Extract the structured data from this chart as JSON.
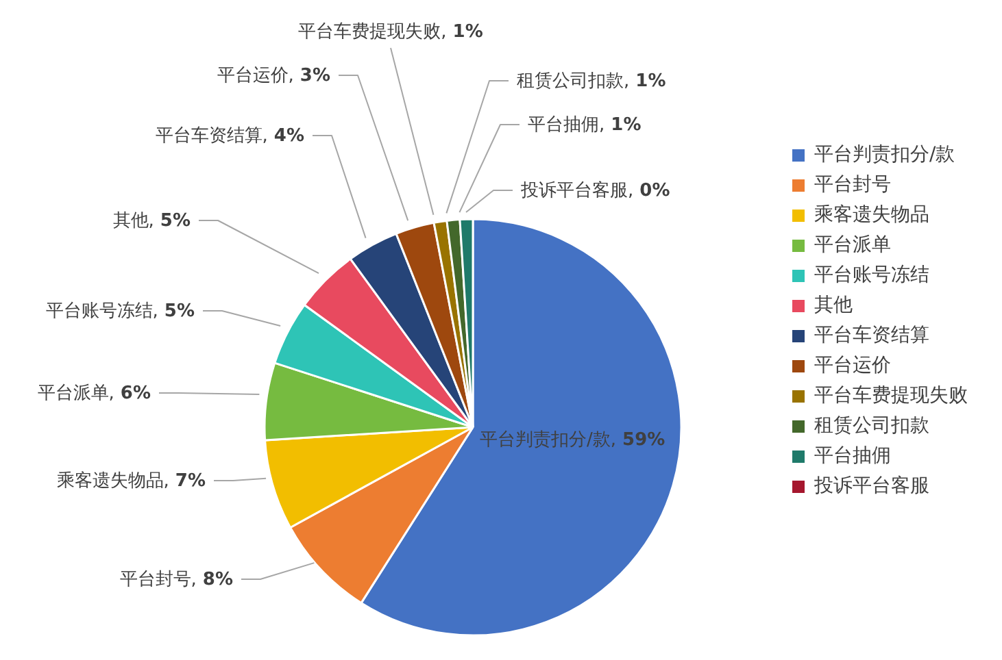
{
  "chart_data": {
    "type": "pie",
    "categories": [
      "平台判责扣分/款",
      "平台封号",
      "乘客遗失物品",
      "平台派单",
      "平台账号冻结",
      "其他",
      "平台车资结算",
      "平台运价",
      "平台车费提现失败",
      "租赁公司扣款",
      "平台抽佣",
      "投诉平台客服"
    ],
    "values": [
      59,
      8,
      7,
      6,
      5,
      5,
      4,
      3,
      1,
      1,
      1,
      0
    ],
    "value_labels": [
      "平台判责扣分/款, 59%",
      "平台封号, 8%",
      "乘客遗失物品, 7%",
      "平台派单, 6%",
      "平台账号冻结, 5%",
      "其他, 5%",
      "平台车资结算, 4%",
      "平台运价, 3%",
      "平台车费提现失败, 1%",
      "租赁公司扣款, 1%",
      "平台抽佣, 1%",
      "投诉平台客服, 0%"
    ],
    "colors": [
      "#4472c4",
      "#ed7d31",
      "#f2be00",
      "#76bb40",
      "#2ec4b6",
      "#e84a5f",
      "#264478",
      "#9e480e",
      "#997300",
      "#43682b",
      "#1f7a6a",
      "#a5172e"
    ],
    "legend": "right"
  }
}
